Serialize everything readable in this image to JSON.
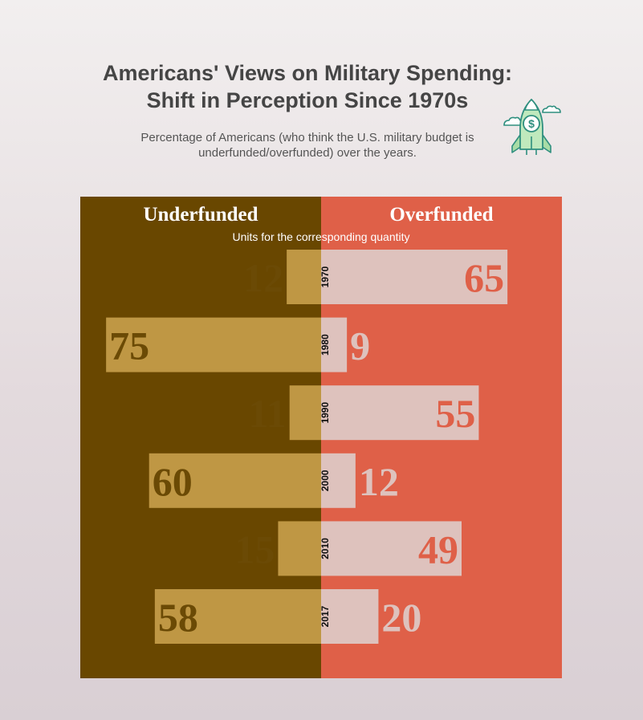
{
  "title_line1": "Americans' Views on Military Spending:",
  "title_line2": "Shift in Perception Since 1970s",
  "subtitle_line1": "Percentage of Americans (who think the U.S. military budget is",
  "subtitle_line2": "underfunded/overfunded) over the years.",
  "icon": "rocket-dollar-icon",
  "colors": {
    "left_bg": "#694700",
    "right_bg": "#df6048",
    "left_bar": "#bf9744",
    "right_bar": "#dec2bd",
    "left_text": "#6b4a05",
    "right_text": "#df6048"
  },
  "chart_data": {
    "type": "bar",
    "orientation": "diverging-horizontal",
    "left_header": "Underfunded",
    "right_header": "Overfunded",
    "units_label": "Units for the corresponding quantity",
    "categories": [
      "1970",
      "1980",
      "1990",
      "2000",
      "2010",
      "2017"
    ],
    "series": [
      {
        "name": "Underfunded",
        "values": [
          12,
          75,
          11,
          60,
          15,
          58
        ]
      },
      {
        "name": "Overfunded",
        "values": [
          65,
          9,
          55,
          12,
          49,
          20
        ]
      }
    ],
    "xlim": [
      0,
      84
    ]
  }
}
